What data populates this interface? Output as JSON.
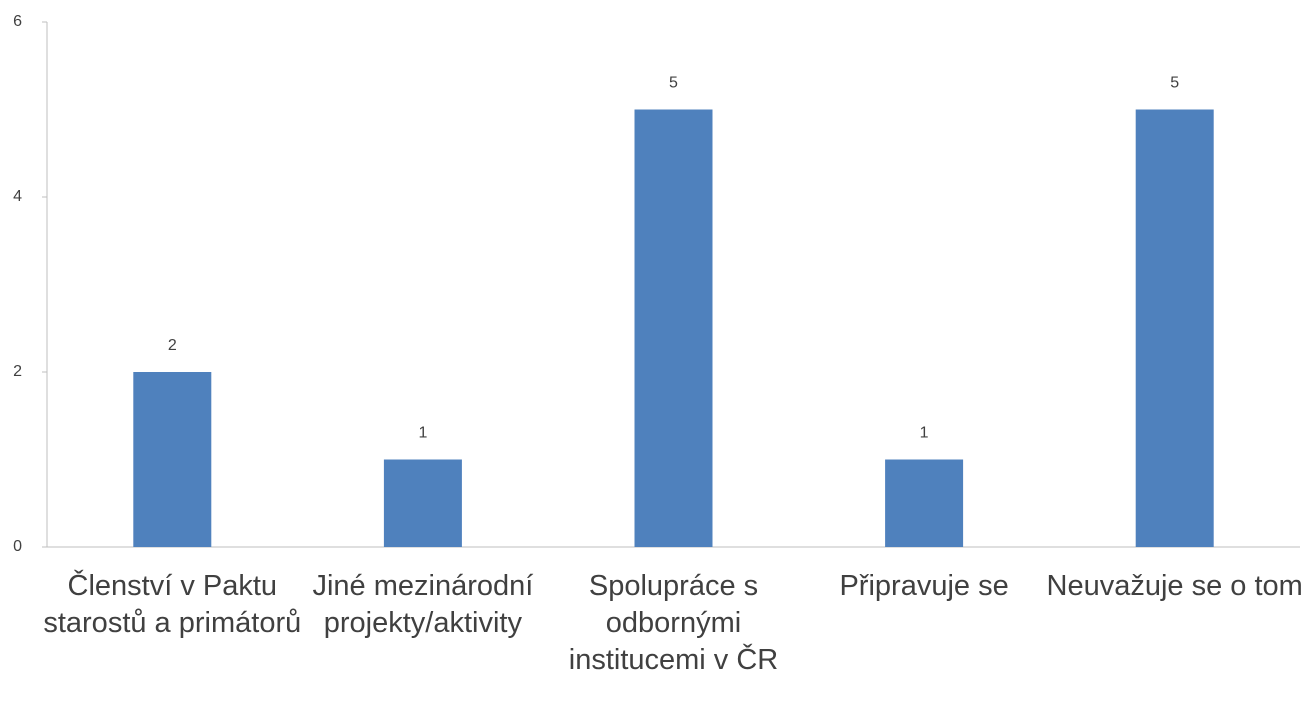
{
  "chart_data": {
    "type": "bar",
    "categories": [
      "Členství v Paktu starostů a primátorů",
      "Jiné mezinárodní projekty/aktivity",
      "Spolupráce s odbornými institucemi v ČR",
      "Připravuje se",
      "Neuvažuje se o tom"
    ],
    "values": [
      2,
      1,
      5,
      1,
      5
    ],
    "color": "#4f81bd",
    "ylim": [
      0,
      6
    ],
    "yticks": [
      0,
      2,
      4,
      6
    ],
    "grid": false
  }
}
